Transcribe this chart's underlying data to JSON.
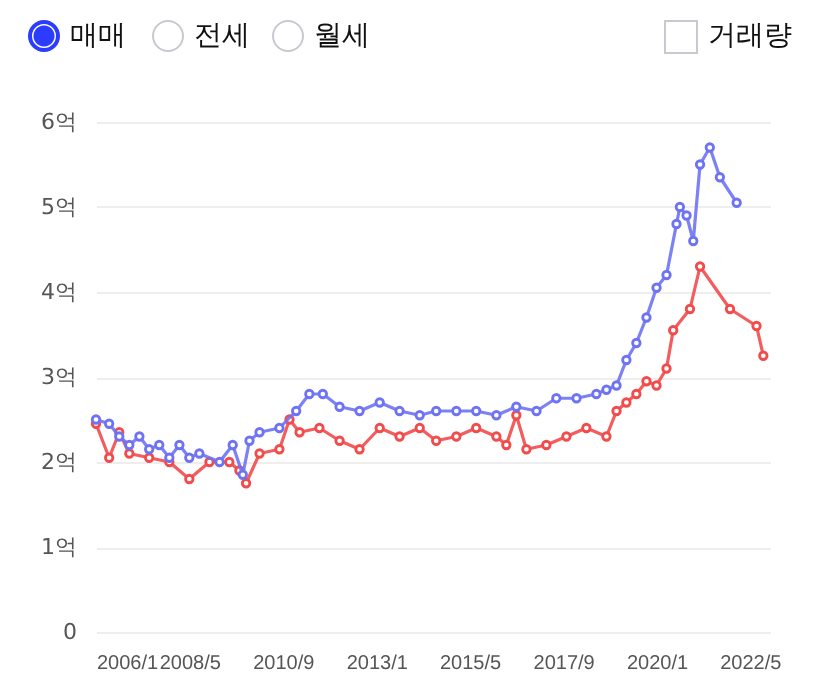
{
  "chart_data": {
    "type": "line",
    "annotations": [
      "매매",
      "전세",
      "월세",
      "거래량"
    ],
    "series": [
      {
        "color": "#6e73f4",
        "x": [
          "2006-01",
          "2006-05",
          "2006-08",
          "2006-11",
          "2007-02",
          "2007-05",
          "2007-08",
          "2007-11",
          "2008-02",
          "2008-05",
          "2008-08",
          "2009-02",
          "2009-06",
          "2009-09",
          "2009-11",
          "2010-02",
          "2010-08",
          "2011-01",
          "2011-05",
          "2011-09",
          "2012-02",
          "2012-08",
          "2013-02",
          "2013-08",
          "2014-02",
          "2014-07",
          "2015-01",
          "2015-07",
          "2016-01",
          "2016-07",
          "2017-01",
          "2017-07",
          "2018-01",
          "2018-07",
          "2018-10",
          "2019-01",
          "2019-04",
          "2019-07",
          "2019-10",
          "2020-01",
          "2020-04",
          "2020-07",
          "2020-08",
          "2020-10",
          "2020-12",
          "2021-02",
          "2021-05",
          "2021-08",
          "2022-01"
        ],
        "values": [
          2.5,
          2.45,
          2.3,
          2.2,
          2.3,
          2.15,
          2.2,
          2.05,
          2.2,
          2.05,
          2.1,
          2.0,
          2.2,
          1.85,
          2.25,
          2.35,
          2.4,
          2.6,
          2.8,
          2.8,
          2.65,
          2.6,
          2.7,
          2.6,
          2.55,
          2.6,
          2.6,
          2.6,
          2.55,
          2.65,
          2.6,
          2.75,
          2.75,
          2.8,
          2.85,
          2.9,
          3.2,
          3.4,
          3.7,
          4.05,
          4.2,
          4.8,
          5.0,
          4.9,
          4.6,
          5.5,
          5.7,
          5.35,
          5.05
        ]
      },
      {
        "color": "#f24b4b",
        "x": [
          "2006-01",
          "2006-05",
          "2006-08",
          "2006-11",
          "2007-05",
          "2007-11",
          "2008-05",
          "2008-11",
          "2009-05",
          "2009-08",
          "2009-10",
          "2010-02",
          "2010-08",
          "2010-11",
          "2011-02",
          "2011-08",
          "2012-02",
          "2012-08",
          "2013-02",
          "2013-08",
          "2014-02",
          "2014-07",
          "2015-01",
          "2015-07",
          "2016-01",
          "2016-04",
          "2016-07",
          "2016-10",
          "2017-04",
          "2017-10",
          "2018-04",
          "2018-10",
          "2019-01",
          "2019-04",
          "2019-07",
          "2019-10",
          "2020-01",
          "2020-04",
          "2020-06",
          "2020-11",
          "2021-02",
          "2021-11",
          "2022-07",
          "2022-09"
        ],
        "values": [
          2.45,
          2.05,
          2.35,
          2.1,
          2.05,
          2.0,
          1.8,
          2.0,
          2.0,
          1.9,
          1.75,
          2.1,
          2.15,
          2.5,
          2.35,
          2.4,
          2.25,
          2.15,
          2.4,
          2.3,
          2.4,
          2.25,
          2.3,
          2.4,
          2.3,
          2.2,
          2.55,
          2.15,
          2.2,
          2.3,
          2.4,
          2.3,
          2.6,
          2.7,
          2.8,
          2.95,
          2.9,
          3.1,
          3.55,
          3.8,
          4.3,
          3.8,
          3.6,
          3.25
        ]
      }
    ],
    "xlim": [
      "2006-01",
      "2022-11"
    ],
    "xticks": [
      {
        "value": "2006-01",
        "label": "2006/1"
      },
      {
        "value": "2008-05",
        "label": "2008/5"
      },
      {
        "value": "2010-09",
        "label": "2010/9"
      },
      {
        "value": "2013-01",
        "label": "2013/1"
      },
      {
        "value": "2015-05",
        "label": "2015/5"
      },
      {
        "value": "2017-09",
        "label": "2017/9"
      },
      {
        "value": "2020-01",
        "label": "2020/1"
      },
      {
        "value": "2022-05",
        "label": "2022/5"
      }
    ],
    "ylim": [
      0,
      6
    ],
    "yticks": [
      {
        "value": 0,
        "label": "0"
      },
      {
        "value": 1,
        "label": "1억"
      },
      {
        "value": 2,
        "label": "2억"
      },
      {
        "value": 3,
        "label": "3억"
      },
      {
        "value": 4,
        "label": "4억"
      },
      {
        "value": 5,
        "label": "5억"
      },
      {
        "value": 6,
        "label": "6억"
      }
    ],
    "grid": "y",
    "marker": "circle",
    "line_style": "solid"
  }
}
